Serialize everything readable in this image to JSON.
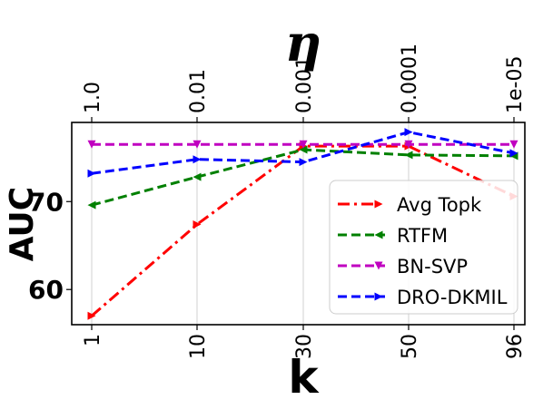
{
  "chart_data": {
    "type": "line",
    "x": [
      "1",
      "10",
      "30",
      "50",
      "96"
    ],
    "top_x": [
      "1.0",
      "0.01",
      "0.001",
      "0.0001",
      "1e-05"
    ],
    "top_xlabel": "η",
    "xlabel": "k",
    "ylabel": "AUC",
    "yticks": [
      60,
      70
    ],
    "ylim": [
      56,
      79
    ],
    "grid": "vertical",
    "legend_position": "center-right",
    "series": [
      {
        "name": "Avg Topk",
        "values": [
          57.0,
          67.4,
          76.3,
          76.3,
          70.6
        ],
        "color": "#ff0000",
        "dash": "dashdot",
        "marker": "triangle-right"
      },
      {
        "name": "RTFM",
        "values": [
          69.6,
          72.8,
          75.9,
          75.3,
          75.2
        ],
        "color": "#008000",
        "dash": "dashed",
        "marker": "triangle-left"
      },
      {
        "name": "BN-SVP",
        "values": [
          76.5,
          76.5,
          76.5,
          76.5,
          76.5
        ],
        "color": "#c000c0",
        "dash": "dashed",
        "marker": "triangle-down"
      },
      {
        "name": "DRO-DKMIL",
        "values": [
          73.2,
          74.8,
          74.5,
          77.9,
          75.5
        ],
        "color": "#0000ff",
        "dash": "dashed",
        "marker": "triangle-right"
      }
    ]
  }
}
